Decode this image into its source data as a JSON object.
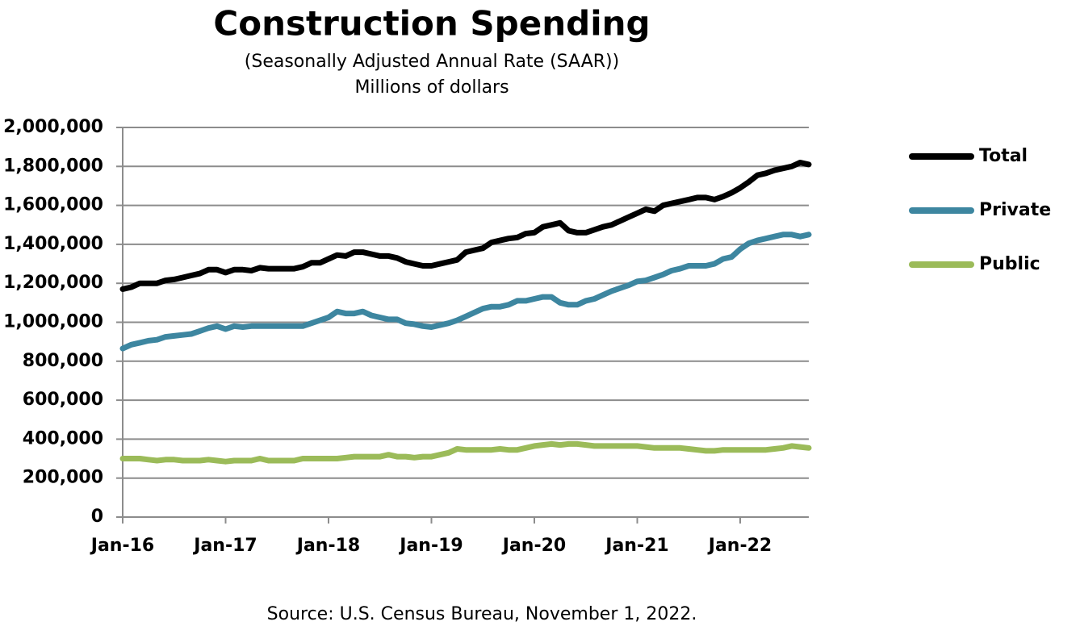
{
  "chart_data": {
    "type": "line",
    "title": "Construction Spending",
    "subtitle": "(Seasonally Adjusted Annual Rate (SAAR))",
    "y_label": "Millions of dollars",
    "source": "Source: U.S. Census Bureau, November 1, 2022.",
    "categories": [
      "Jan-16",
      null,
      null,
      null,
      null,
      null,
      null,
      null,
      null,
      null,
      null,
      null,
      "Jan-17",
      null,
      null,
      null,
      null,
      null,
      null,
      null,
      null,
      null,
      null,
      null,
      "Jan-18",
      null,
      null,
      null,
      null,
      null,
      null,
      null,
      null,
      null,
      null,
      null,
      "Jan-19",
      null,
      null,
      null,
      null,
      null,
      null,
      null,
      null,
      null,
      null,
      null,
      "Jan-20",
      null,
      null,
      null,
      null,
      null,
      null,
      null,
      null,
      null,
      null,
      null,
      "Jan-21",
      null,
      null,
      null,
      null,
      null,
      null,
      null,
      null,
      null,
      null,
      null,
      "Jan-22",
      null,
      null,
      null,
      null,
      null,
      null,
      null,
      null
    ],
    "series": [
      {
        "name": "Total",
        "color": "#000000",
        "values": [
          1170000,
          1180000,
          1200000,
          1200000,
          1200000,
          1215000,
          1220000,
          1230000,
          1240000,
          1250000,
          1270000,
          1270000,
          1255000,
          1270000,
          1270000,
          1265000,
          1280000,
          1275000,
          1275000,
          1275000,
          1275000,
          1285000,
          1305000,
          1305000,
          1325000,
          1345000,
          1340000,
          1360000,
          1360000,
          1350000,
          1340000,
          1340000,
          1330000,
          1310000,
          1300000,
          1290000,
          1290000,
          1300000,
          1310000,
          1320000,
          1360000,
          1370000,
          1380000,
          1410000,
          1420000,
          1430000,
          1435000,
          1455000,
          1460000,
          1490000,
          1500000,
          1510000,
          1470000,
          1460000,
          1460000,
          1475000,
          1490000,
          1500000,
          1520000,
          1540000,
          1560000,
          1580000,
          1570000,
          1600000,
          1610000,
          1620000,
          1630000,
          1640000,
          1640000,
          1630000,
          1645000,
          1665000,
          1690000,
          1720000,
          1755000,
          1765000,
          1780000,
          1790000,
          1800000,
          1820000,
          1810000
        ]
      },
      {
        "name": "Private",
        "color": "#3d86a0",
        "values": [
          865000,
          885000,
          895000,
          905000,
          910000,
          925000,
          930000,
          935000,
          940000,
          955000,
          970000,
          980000,
          965000,
          980000,
          975000,
          980000,
          980000,
          980000,
          980000,
          980000,
          980000,
          980000,
          995000,
          1010000,
          1025000,
          1055000,
          1045000,
          1045000,
          1055000,
          1035000,
          1025000,
          1015000,
          1015000,
          995000,
          990000,
          980000,
          975000,
          985000,
          995000,
          1010000,
          1030000,
          1050000,
          1070000,
          1080000,
          1080000,
          1090000,
          1110000,
          1110000,
          1120000,
          1130000,
          1130000,
          1100000,
          1090000,
          1090000,
          1110000,
          1120000,
          1140000,
          1160000,
          1175000,
          1190000,
          1210000,
          1215000,
          1230000,
          1245000,
          1265000,
          1275000,
          1290000,
          1290000,
          1290000,
          1300000,
          1325000,
          1335000,
          1375000,
          1405000,
          1420000,
          1430000,
          1440000,
          1450000,
          1450000,
          1440000,
          1450000
        ]
      },
      {
        "name": "Public",
        "color": "#9bbb59",
        "values": [
          300000,
          300000,
          300000,
          295000,
          290000,
          295000,
          295000,
          290000,
          290000,
          290000,
          295000,
          290000,
          285000,
          290000,
          290000,
          290000,
          300000,
          290000,
          290000,
          290000,
          290000,
          300000,
          300000,
          300000,
          300000,
          300000,
          305000,
          310000,
          310000,
          310000,
          310000,
          320000,
          310000,
          310000,
          305000,
          310000,
          310000,
          320000,
          330000,
          350000,
          345000,
          345000,
          345000,
          345000,
          350000,
          345000,
          345000,
          355000,
          365000,
          370000,
          375000,
          370000,
          375000,
          375000,
          370000,
          365000,
          365000,
          365000,
          365000,
          365000,
          365000,
          360000,
          355000,
          355000,
          355000,
          355000,
          350000,
          345000,
          340000,
          340000,
          345000,
          345000,
          345000,
          345000,
          345000,
          345000,
          350000,
          355000,
          365000,
          360000,
          355000
        ]
      }
    ],
    "ylim": [
      0,
      2000000
    ],
    "yticks": [
      0,
      {
        "value": 200000,
        "label": "200,000"
      },
      {
        "value": 400000,
        "label": "400,000"
      },
      {
        "value": 600000,
        "label": "600,000"
      },
      {
        "value": 800000,
        "label": "800,000"
      },
      {
        "value": 1000000,
        "label": "1,000,000"
      },
      {
        "value": 1200000,
        "label": "1,200,000"
      },
      {
        "value": 1400000,
        "label": "1,400,000"
      },
      {
        "value": 1600000,
        "label": "1,600,000"
      },
      {
        "value": 1800000,
        "label": "1,800,000"
      },
      {
        "value": 2000000,
        "label": "2,000,000"
      }
    ],
    "grid": true,
    "legend": "right"
  }
}
